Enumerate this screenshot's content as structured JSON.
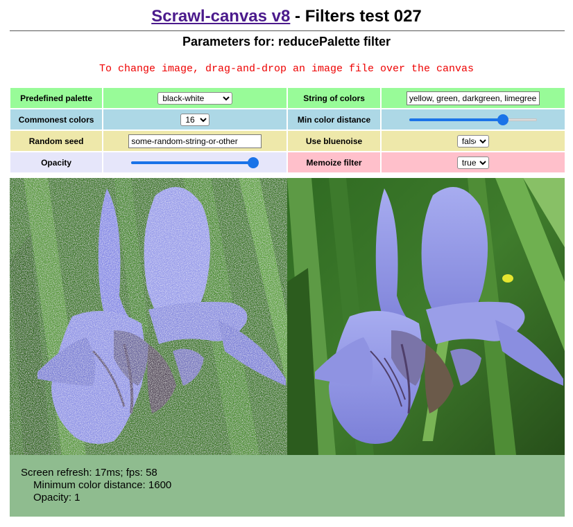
{
  "header": {
    "title_link": "Scrawl-canvas v8",
    "title_rest": " - Filters test 027",
    "subtitle": "Parameters for: reducePalette filter",
    "instruction": "To change image, drag-and-drop an image file over the canvas"
  },
  "controls": {
    "predefined_palette": {
      "label": "Predefined palette",
      "value": "black-white"
    },
    "string_of_colors": {
      "label": "String of colors",
      "value": "yellow, green, darkgreen, limegreen"
    },
    "commonest_colors": {
      "label": "Commonest colors",
      "value": "16"
    },
    "min_color_distance": {
      "label": "Min color distance",
      "level": 0.76
    },
    "random_seed": {
      "label": "Random seed",
      "value": "some-random-string-or-other"
    },
    "use_bluenoise": {
      "label": "Use bluenoise",
      "value": "false"
    },
    "opacity": {
      "label": "Opacity",
      "level": 1.0
    },
    "memoize_filter": {
      "label": "Memoize filter",
      "value": "true"
    }
  },
  "colors": {
    "green": "#98fb98",
    "blue": "#add8e6",
    "khaki": "#eee8aa",
    "lavender": "#e6e6fa",
    "pink": "#ffc0cb",
    "report_bg": "#8fbc8f",
    "slider_accent": "#1a73e8"
  },
  "report": {
    "line1": "Screen refresh: 17ms; fps: 58",
    "line2": "Minimum color distance: 1600",
    "line3": "Opacity: 1"
  }
}
